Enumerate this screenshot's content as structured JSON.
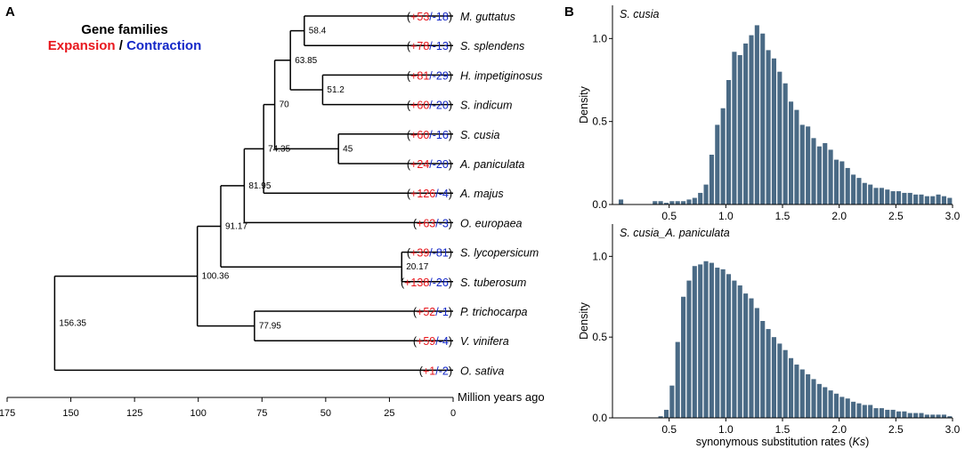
{
  "panel_a": {
    "label": "A",
    "legend": {
      "title": "Gene families",
      "expansion": "Expansion",
      "separator": " / ",
      "contraction": "Contraction"
    },
    "colors": {
      "expansion": "#e8171d",
      "contraction": "#1428c8",
      "line": "#000000"
    },
    "taxa": [
      {
        "name": "M. guttatus",
        "expansion": "+53",
        "contraction": "-18"
      },
      {
        "name": "S. splendens",
        "expansion": "+78",
        "contraction": "-13"
      },
      {
        "name": "H. impetiginosus",
        "expansion": "+81",
        "contraction": "-29"
      },
      {
        "name": "S. indicum",
        "expansion": "+60",
        "contraction": "-20"
      },
      {
        "name": "S. cusia",
        "expansion": "+60",
        "contraction": "-16"
      },
      {
        "name": "A. paniculata",
        "expansion": "+24",
        "contraction": "-20"
      },
      {
        "name": "A. majus",
        "expansion": "+126",
        "contraction": "-4"
      },
      {
        "name": "O. europaea",
        "expansion": "+63",
        "contraction": "-3"
      },
      {
        "name": "S. lycopersicum",
        "expansion": "+39",
        "contraction": "-81"
      },
      {
        "name": "S. tuberosum",
        "expansion": "+138",
        "contraction": "-26"
      },
      {
        "name": "P. trichocarpa",
        "expansion": "+52",
        "contraction": "-1"
      },
      {
        "name": "V. vinifera",
        "expansion": "+59",
        "contraction": "-4"
      },
      {
        "name": "O. sativa",
        "expansion": "+1",
        "contraction": "-2"
      }
    ],
    "nodes": [
      {
        "id": "n1",
        "age": 58.4,
        "label": "58.4",
        "children": [
          "t0",
          "t1"
        ]
      },
      {
        "id": "n2",
        "age": 51.2,
        "label": "51.2",
        "children": [
          "t2",
          "t3"
        ]
      },
      {
        "id": "n3",
        "age": 63.85,
        "label": "63.85",
        "children": [
          "n1",
          "n2"
        ]
      },
      {
        "id": "n4",
        "age": 45,
        "label": "45",
        "children": [
          "t4",
          "t5"
        ]
      },
      {
        "id": "n5",
        "age": 70,
        "label": "70",
        "children": [
          "n3",
          "n4"
        ]
      },
      {
        "id": "n6",
        "age": 74.35,
        "label": "74.35",
        "children": [
          "n5",
          "t6"
        ]
      },
      {
        "id": "n7",
        "age": 81.95,
        "label": "81.95",
        "children": [
          "n6",
          "t7"
        ]
      },
      {
        "id": "n8",
        "age": 20.17,
        "label": "20.17",
        "children": [
          "t8",
          "t9"
        ]
      },
      {
        "id": "n9",
        "age": 91.17,
        "label": "91.17",
        "children": [
          "n7",
          "n8"
        ]
      },
      {
        "id": "n10",
        "age": 77.95,
        "label": "77.95",
        "children": [
          "t10",
          "t11"
        ]
      },
      {
        "id": "n11",
        "age": 100.36,
        "label": "100.36",
        "children": [
          "n9",
          "n10"
        ]
      },
      {
        "id": "n12",
        "age": 156.35,
        "label": "156.35",
        "children": [
          "n11",
          "t12"
        ]
      }
    ],
    "axis": {
      "ticks": [
        "175",
        "150",
        "125",
        "100",
        "75",
        "50",
        "25",
        "0"
      ],
      "tick_values": [
        175,
        150,
        125,
        100,
        75,
        50,
        25,
        0
      ],
      "label": "Million years ago",
      "max": 175
    }
  },
  "panel_b": {
    "label": "B",
    "bar_color": "#4a6a85",
    "chart_data": [
      {
        "type": "bar",
        "title": "S. cusia",
        "ylabel": "Density",
        "xlim": [
          0,
          3.0
        ],
        "ylim": [
          0,
          1.2
        ],
        "bin_width": 0.05,
        "x_ticks": [
          "0.5",
          "1.0",
          "1.5",
          "2.0",
          "2.5",
          "3.0"
        ],
        "x_tick_values": [
          0.5,
          1.0,
          1.5,
          2.0,
          2.5,
          3.0
        ],
        "y_ticks": [
          "0.0",
          "0.5",
          "1.0"
        ],
        "y_tick_values": [
          0.0,
          0.5,
          1.0
        ],
        "values": [
          0.0,
          0.03,
          0.0,
          0.0,
          0.0,
          0.0,
          0.0,
          0.02,
          0.02,
          0.01,
          0.02,
          0.02,
          0.02,
          0.03,
          0.04,
          0.07,
          0.12,
          0.3,
          0.48,
          0.58,
          0.75,
          0.92,
          0.9,
          0.97,
          1.02,
          1.08,
          1.03,
          0.93,
          0.88,
          0.8,
          0.73,
          0.62,
          0.57,
          0.48,
          0.47,
          0.4,
          0.35,
          0.37,
          0.33,
          0.27,
          0.26,
          0.22,
          0.18,
          0.16,
          0.13,
          0.12,
          0.1,
          0.1,
          0.09,
          0.08,
          0.08,
          0.07,
          0.07,
          0.06,
          0.06,
          0.05,
          0.05,
          0.06,
          0.05,
          0.04
        ]
      },
      {
        "type": "bar",
        "title": "S. cusia_A. paniculata",
        "ylabel": "Density",
        "xlabel": "synonymous substitution rates (",
        "xlabel_italic": "Ks",
        "xlabel_end": ")",
        "xlim": [
          0,
          3.0
        ],
        "ylim": [
          0,
          1.2
        ],
        "bin_width": 0.05,
        "x_ticks": [
          "0.5",
          "1.0",
          "1.5",
          "2.0",
          "2.5",
          "3.0"
        ],
        "x_tick_values": [
          0.5,
          1.0,
          1.5,
          2.0,
          2.5,
          3.0
        ],
        "y_ticks": [
          "0.0",
          "0.5",
          "1.0"
        ],
        "y_tick_values": [
          0.0,
          0.5,
          1.0
        ],
        "values": [
          0.0,
          0.0,
          0.0,
          0.0,
          0.0,
          0.0,
          0.0,
          0.0,
          0.01,
          0.05,
          0.2,
          0.47,
          0.75,
          0.85,
          0.94,
          0.95,
          0.97,
          0.96,
          0.93,
          0.92,
          0.89,
          0.85,
          0.82,
          0.77,
          0.74,
          0.68,
          0.6,
          0.55,
          0.5,
          0.46,
          0.42,
          0.37,
          0.33,
          0.3,
          0.27,
          0.24,
          0.21,
          0.19,
          0.17,
          0.15,
          0.13,
          0.12,
          0.1,
          0.09,
          0.08,
          0.08,
          0.06,
          0.06,
          0.05,
          0.05,
          0.04,
          0.04,
          0.03,
          0.03,
          0.03,
          0.02,
          0.02,
          0.02,
          0.02,
          0.01
        ]
      }
    ]
  }
}
